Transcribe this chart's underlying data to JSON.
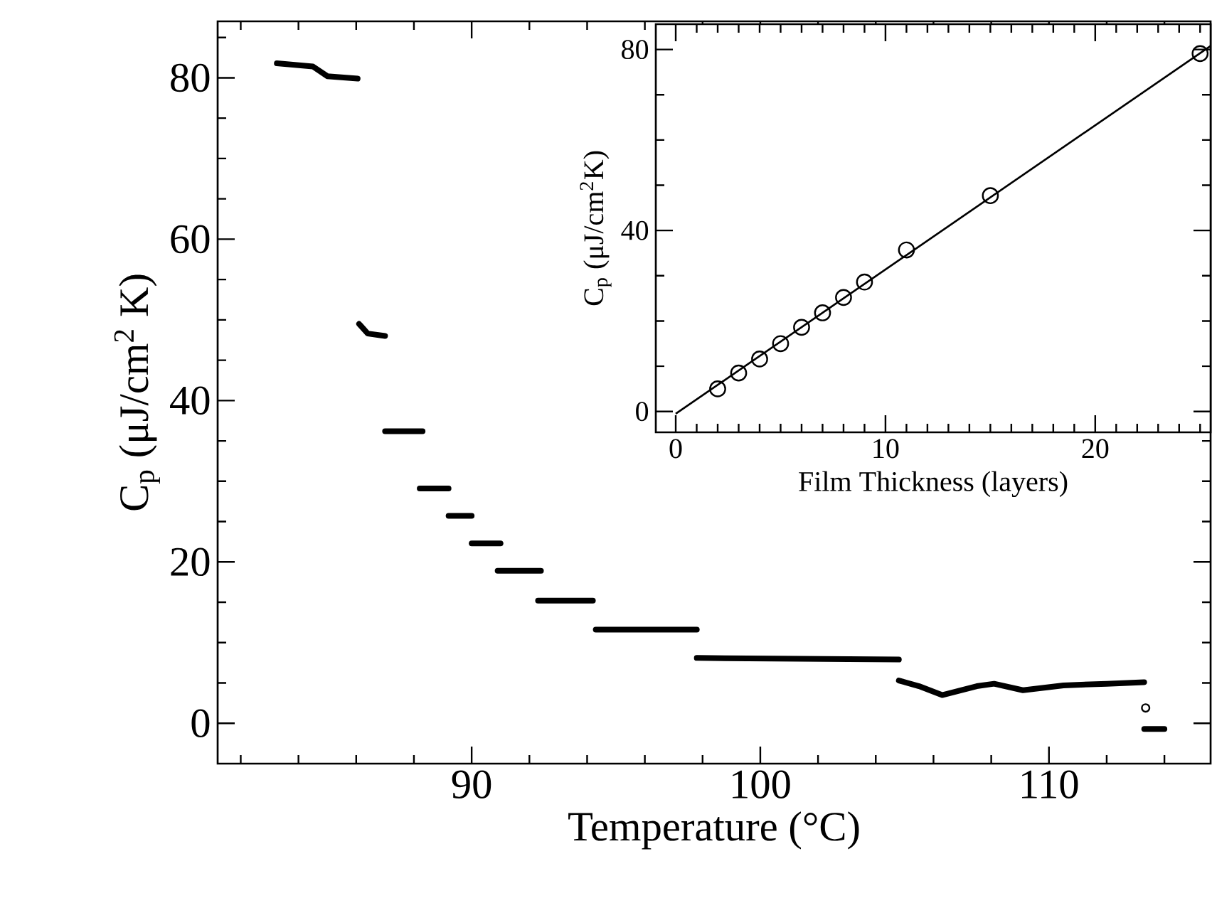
{
  "chart_data": [
    {
      "type": "line",
      "xlabel": "Temperature (°C)",
      "ylabel": "C$_{p}$ (μJ/cm$^{2}$ K)",
      "xlim": [
        81.2,
        115.6
      ],
      "ylim": [
        -5,
        87
      ],
      "xticks": [
        {
          "value": 82,
          "label": null
        },
        {
          "value": 84,
          "label": null
        },
        {
          "value": 86,
          "label": null
        },
        {
          "value": 88,
          "label": null
        },
        90,
        {
          "value": 92,
          "label": null
        },
        {
          "value": 94,
          "label": null
        },
        {
          "value": 96,
          "label": null
        },
        {
          "value": 98,
          "label": null
        },
        100,
        {
          "value": 102,
          "label": null
        },
        {
          "value": 104,
          "label": null
        },
        {
          "value": 106,
          "label": null
        },
        {
          "value": 108,
          "label": null
        },
        110,
        {
          "value": 112,
          "label": null
        },
        {
          "value": 114,
          "label": null
        }
      ],
      "yticks": [
        0,
        {
          "value": 5,
          "label": null
        },
        {
          "value": 10,
          "label": null
        },
        {
          "value": 15,
          "label": null
        },
        20,
        {
          "value": 25,
          "label": null
        },
        {
          "value": 30,
          "label": null
        },
        {
          "value": 35,
          "label": null
        },
        40,
        {
          "value": 45,
          "label": null
        },
        {
          "value": 50,
          "label": null
        },
        {
          "value": 55,
          "label": null
        },
        60,
        {
          "value": 65,
          "label": null
        },
        {
          "value": 70,
          "label": null
        },
        {
          "value": 75,
          "label": null
        },
        80,
        {
          "value": 85,
          "label": null
        }
      ],
      "marker": "none",
      "series": [
        {
          "color": "#000000",
          "x": [
            83.25,
            84.5,
            85.0,
            86.05
          ],
          "values": [
            81.8,
            81.4,
            80.2,
            79.9
          ]
        },
        {
          "color": "#000000",
          "x": [
            86.1,
            86.4,
            87.0
          ],
          "values": [
            49.5,
            48.3,
            48.0
          ]
        },
        {
          "color": "#000000",
          "x": [
            87.0,
            88.3
          ],
          "values": [
            36.2,
            36.2
          ]
        },
        {
          "color": "#000000",
          "x": [
            88.2,
            89.2
          ],
          "values": [
            29.1,
            29.1
          ]
        },
        {
          "color": "#000000",
          "x": [
            89.2,
            90.0
          ],
          "values": [
            25.7,
            25.7
          ]
        },
        {
          "color": "#000000",
          "x": [
            90.0,
            91.0
          ],
          "values": [
            22.3,
            22.3
          ]
        },
        {
          "color": "#000000",
          "x": [
            90.9,
            92.4
          ],
          "values": [
            18.9,
            18.9
          ]
        },
        {
          "color": "#000000",
          "x": [
            92.3,
            94.2
          ],
          "values": [
            15.2,
            15.2
          ]
        },
        {
          "color": "#000000",
          "x": [
            94.3,
            97.8
          ],
          "values": [
            11.6,
            11.6
          ]
        },
        {
          "color": "#000000",
          "x": [
            97.8,
            104.8
          ],
          "values": [
            8.1,
            7.9
          ]
        },
        {
          "color": "#000000",
          "x": [
            104.8,
            105.5,
            106.3,
            107.5,
            108.1,
            109.1,
            110.5,
            112.0,
            113.3
          ],
          "values": [
            5.3,
            4.6,
            3.5,
            4.6,
            4.9,
            4.1,
            4.7,
            4.9,
            5.1
          ]
        },
        {
          "type": "scatter",
          "marker": "circle",
          "color": "#000000",
          "x": [
            113.35
          ],
          "values": [
            1.9
          ]
        },
        {
          "color": "#000000",
          "x": [
            113.3,
            114.0
          ],
          "values": [
            -0.7,
            -0.7
          ]
        }
      ]
    },
    {
      "type": "scatter",
      "xlabel": "Film Thickness (layers)",
      "ylabel": "C$_{p}$ (μJ/cm$^{2}$K)",
      "xlim": [
        -0.95,
        25.5
      ],
      "ylim": [
        -4.6,
        85.6
      ],
      "xticks": [
        0,
        {
          "value": 1,
          "label": null
        },
        {
          "value": 2,
          "label": null
        },
        {
          "value": 3,
          "label": null
        },
        {
          "value": 4,
          "label": null
        },
        {
          "value": 5,
          "label": null
        },
        {
          "value": 6,
          "label": null
        },
        {
          "value": 7,
          "label": null
        },
        {
          "value": 8,
          "label": null
        },
        {
          "value": 9,
          "label": null
        },
        10,
        {
          "value": 11,
          "label": null
        },
        {
          "value": 12,
          "label": null
        },
        {
          "value": 13,
          "label": null
        },
        {
          "value": 14,
          "label": null
        },
        {
          "value": 15,
          "label": null
        },
        {
          "value": 16,
          "label": null
        },
        {
          "value": 17,
          "label": null
        },
        {
          "value": 18,
          "label": null
        },
        {
          "value": 19,
          "label": null
        },
        20,
        {
          "value": 21,
          "label": null
        },
        {
          "value": 22,
          "label": null
        },
        {
          "value": 23,
          "label": null
        },
        {
          "value": 24,
          "label": null
        },
        {
          "value": 25,
          "label": null
        }
      ],
      "yticks": [
        0,
        {
          "value": 10,
          "label": null
        },
        {
          "value": 20,
          "label": null
        },
        {
          "value": 30,
          "label": null
        },
        40,
        {
          "value": 50,
          "label": null
        },
        {
          "value": 60,
          "label": null
        },
        {
          "value": 70,
          "label": null
        },
        80
      ],
      "marker": "circle",
      "series": [
        {
          "type": "line",
          "marker": "none",
          "color": "#000000",
          "x": [
            0,
            25.5
          ],
          "values": [
            -0.5,
            80.8
          ]
        },
        {
          "color": "#000000",
          "x": [
            2,
            3,
            4,
            5,
            6,
            7,
            8,
            9,
            11,
            15,
            25
          ],
          "values": [
            5.0,
            8.5,
            11.6,
            15.0,
            18.6,
            21.8,
            25.2,
            28.6,
            35.7,
            47.7,
            79.1
          ]
        }
      ]
    }
  ]
}
